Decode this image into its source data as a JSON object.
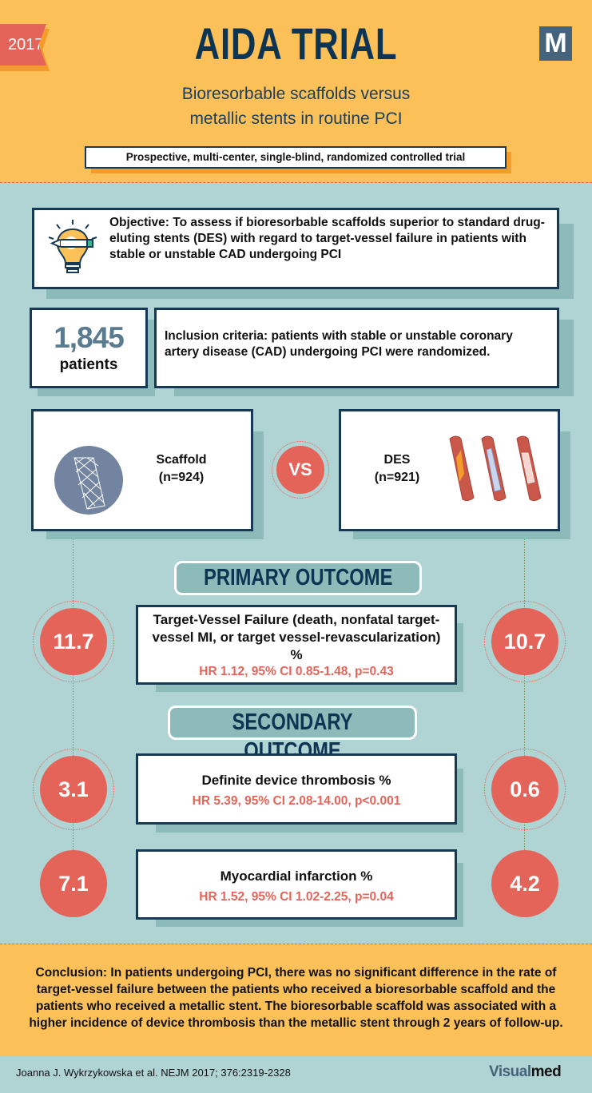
{
  "header": {
    "year": "2017",
    "title": "AIDA TRIAL",
    "logo_letter": "M",
    "subtitle_line1": "Bioresorbable scaffolds versus",
    "subtitle_line2": "metallic stents in routine PCI",
    "design": "Prospective, multi-center, single-blind, randomized controlled trial"
  },
  "objective": {
    "icon": "lightbulb-icon",
    "text": "Objective: To assess if bioresorbable scaffolds superior to standard drug-eluting stents (DES) with regard to target-vessel failure in patients with stable or unstable CAD undergoing PCI"
  },
  "enrollment": {
    "count": "1,845",
    "unit": "patients",
    "inclusion": "Inclusion criteria: patients with stable or unstable coronary artery disease (CAD) undergoing PCI were randomized."
  },
  "arms": {
    "left_label": "Scaffold",
    "left_n": "(n=924)",
    "vs": "VS",
    "right_label": "DES",
    "right_n": "(n=921)"
  },
  "primary": {
    "heading": "PRIMARY OUTCOME",
    "title": "Target-Vessel Failure (death, nonfatal target-vessel MI, or target vessel-revascularization) %",
    "stat": "HR 1.12, 95% CI 0.85-1.48, p=0.43",
    "scaffold": "11.7",
    "des": "10.7"
  },
  "secondary": {
    "heading": "SECONDARY OUTCOME",
    "items": [
      {
        "title": "Definite device thrombosis %",
        "stat": "HR 5.39, 95% CI 2.08-14.00, p<0.001",
        "scaffold": "3.1",
        "des": "0.6"
      },
      {
        "title": "Myocardial infarction %",
        "stat": "HR 1.52, 95% CI 1.02-2.25, p=0.04",
        "scaffold": "7.1",
        "des": "4.2"
      }
    ]
  },
  "conclusion": "Conclusion: In patients undergoing PCI, there was no significant difference in the rate of target-vessel failure between the patients who received a bioresorbable scaffold and the patients who received a metallic stent. The bioresorbable scaffold was associated with a higher incidence of device thrombosis than the metallic stent through 2 years of follow-up.",
  "footer": {
    "citation": "Joanna J. Wykrzykowska et al. NEJM 2017; 376:2319-2328",
    "brand_part1": "Visual",
    "brand_part2": "med"
  },
  "colors": {
    "yellow": "#fbc158",
    "teal": "#b0d3d4",
    "navy": "#0d3553",
    "red": "#e4645a"
  }
}
